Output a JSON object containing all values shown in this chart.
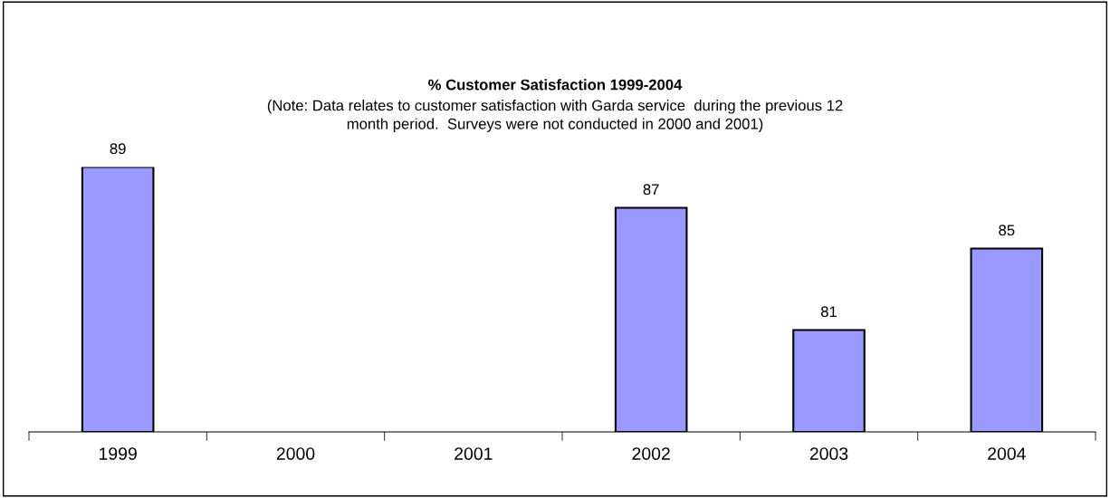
{
  "chart_data": {
    "type": "bar",
    "title": "% Customer Satisfaction 1999-2004",
    "subtitle": "(Note: Data relates to customer satisfaction with Garda service  during the previous 12\nmonth period.  Surveys were not conducted in 2000 and 2001)",
    "categories": [
      "1999",
      "2000",
      "2001",
      "2002",
      "2003",
      "2004"
    ],
    "values": [
      89,
      null,
      null,
      87,
      81,
      85
    ],
    "color": "#9999ff",
    "ylim": [
      76,
      89
    ],
    "tick_labels": "x",
    "data_labels": true,
    "grid": false,
    "legend": false
  }
}
